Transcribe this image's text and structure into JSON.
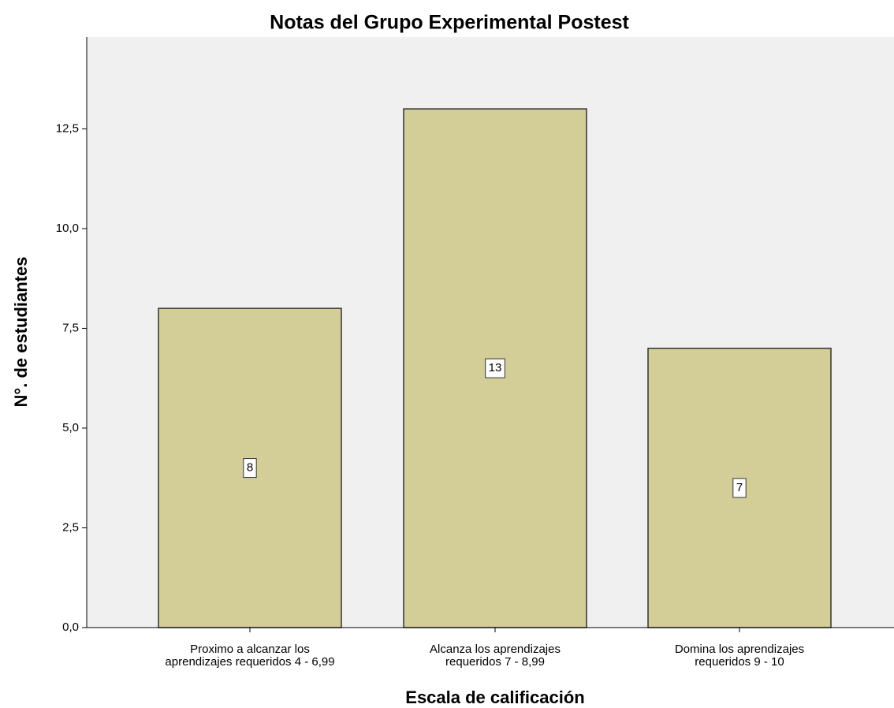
{
  "chart_data": {
    "type": "bar",
    "title": "Notas del Grupo Experimental Postest",
    "xlabel": "Escala de calificación",
    "ylabel": "N°. de estudiantes",
    "categories": [
      [
        "Proximo a alcanzar los",
        "aprendizajes requeridos 4 - 6,99"
      ],
      [
        "Alcanza los aprendizajes",
        "requeridos 7 - 8,99"
      ],
      [
        "Domina los aprendizajes",
        "requeridos 9 - 10"
      ]
    ],
    "values": [
      8,
      13,
      7
    ],
    "color": "#d3ce98",
    "ylim": [
      0,
      14.8
    ],
    "yticks": [
      {
        "value": 0,
        "label": "0,0"
      },
      {
        "value": 2.5,
        "label": "2,5"
      },
      {
        "value": 5,
        "label": "5,0"
      },
      {
        "value": 7.5,
        "label": "7,5"
      },
      {
        "value": 10,
        "label": "10,0"
      },
      {
        "value": 12.5,
        "label": "12,5"
      }
    ],
    "grid": false
  }
}
